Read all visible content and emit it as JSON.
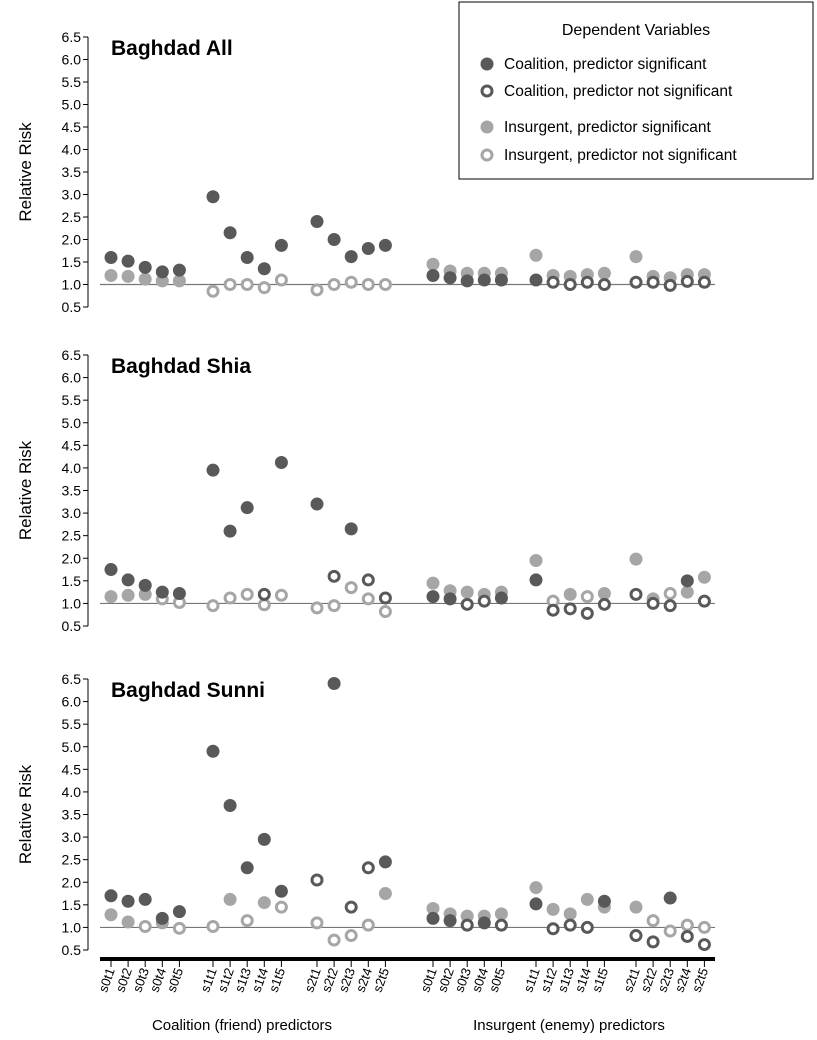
{
  "chart_data": {
    "type": "scatter",
    "ylabel": "Relative Risk",
    "ylim": [
      0.5,
      6.5
    ],
    "yticks": [
      "0.5",
      "1.0",
      "1.5",
      "2.0",
      "2.5",
      "3.0",
      "3.5",
      "4.0",
      "4.5",
      "5.0",
      "5.5",
      "6.0",
      "6.5"
    ],
    "reference_line": 1.0,
    "colors": {
      "coalition": "#595959",
      "insurgent": "#a6a6a6"
    },
    "categories": [
      "s0t1",
      "s0t2",
      "s0t3",
      "s0t4",
      "s0t5",
      "s1t1",
      "s1t2",
      "s1t3",
      "s1t4",
      "s1t5",
      "s2t1",
      "s2t2",
      "s2t3",
      "s2t4",
      "s2t5",
      "s0t1",
      "s0t2",
      "s0t3",
      "s0t4",
      "s0t5",
      "s1t1",
      "s1t2",
      "s1t3",
      "s1t4",
      "s1t5",
      "s2t1",
      "s2t2",
      "s2t3",
      "s2t4",
      "s2t5"
    ],
    "groups": [
      "Coalition (friend) predictors",
      "Insurgent (enemy) predictors"
    ],
    "legend": {
      "title": "Dependent Variables",
      "placement": "top-right",
      "entries": [
        {
          "label": "Coalition, predictor significant",
          "color": "#595959",
          "filled": true
        },
        {
          "label": "Coalition, predictor not significant",
          "color": "#595959",
          "filled": false
        },
        {
          "label": "Insurgent, predictor significant",
          "color": "#a6a6a6",
          "filled": true
        },
        {
          "label": "Insurgent, predictor not significant",
          "color": "#a6a6a6",
          "filled": false
        }
      ]
    },
    "panels": [
      {
        "title": "Baghdad All",
        "coalition_values": [
          1.6,
          1.52,
          1.38,
          1.28,
          1.32,
          2.95,
          2.15,
          1.6,
          1.35,
          1.87,
          2.4,
          2.0,
          1.62,
          1.8,
          1.87,
          1.2,
          1.15,
          1.08,
          1.1,
          1.1,
          1.1,
          1.05,
          1.0,
          1.05,
          1.0,
          1.05,
          1.05,
          0.98,
          1.07,
          1.05
        ],
        "coalition_significant": [
          true,
          true,
          true,
          true,
          true,
          true,
          true,
          true,
          true,
          true,
          true,
          true,
          true,
          true,
          true,
          true,
          true,
          true,
          true,
          true,
          true,
          false,
          false,
          false,
          false,
          false,
          false,
          false,
          false,
          false
        ],
        "insurgent_values": [
          1.2,
          1.18,
          1.12,
          1.08,
          1.08,
          0.85,
          1.0,
          1.0,
          0.93,
          1.1,
          0.88,
          1.0,
          1.05,
          1.0,
          1.0,
          1.45,
          1.3,
          1.25,
          1.25,
          1.25,
          1.65,
          1.2,
          1.18,
          1.22,
          1.25,
          1.62,
          1.18,
          1.15,
          1.22,
          1.22
        ],
        "insurgent_significant": [
          true,
          true,
          true,
          true,
          true,
          false,
          false,
          false,
          false,
          false,
          false,
          false,
          false,
          false,
          false,
          true,
          true,
          true,
          true,
          true,
          true,
          true,
          true,
          true,
          true,
          true,
          true,
          true,
          true,
          true
        ]
      },
      {
        "title": "Baghdad Shia",
        "coalition_values": [
          1.75,
          1.52,
          1.4,
          1.25,
          1.22,
          3.95,
          2.6,
          3.12,
          1.2,
          4.12,
          3.2,
          1.6,
          2.65,
          1.52,
          1.12,
          1.15,
          1.1,
          0.98,
          1.05,
          1.12,
          1.52,
          0.85,
          0.88,
          0.78,
          0.98,
          1.2,
          1.0,
          0.95,
          1.5,
          1.05
        ],
        "coalition_significant": [
          true,
          true,
          true,
          true,
          true,
          true,
          true,
          true,
          false,
          true,
          true,
          false,
          true,
          false,
          false,
          true,
          true,
          false,
          false,
          true,
          true,
          false,
          false,
          false,
          false,
          false,
          false,
          false,
          true,
          false
        ],
        "insurgent_values": [
          1.15,
          1.18,
          1.2,
          1.1,
          1.02,
          0.95,
          1.12,
          1.2,
          0.97,
          1.18,
          0.9,
          0.95,
          1.35,
          1.1,
          0.82,
          1.45,
          1.28,
          1.25,
          1.2,
          1.25,
          1.95,
          1.05,
          1.2,
          1.15,
          1.22,
          1.98,
          1.1,
          1.22,
          1.25,
          1.58
        ],
        "insurgent_significant": [
          true,
          true,
          true,
          false,
          false,
          false,
          false,
          false,
          false,
          false,
          false,
          false,
          false,
          false,
          false,
          true,
          true,
          true,
          true,
          true,
          true,
          false,
          true,
          false,
          true,
          true,
          true,
          false,
          true,
          true
        ]
      },
      {
        "title": "Baghdad Sunni",
        "coalition_values": [
          1.7,
          1.58,
          1.62,
          1.2,
          1.35,
          4.9,
          3.7,
          2.32,
          2.95,
          1.8,
          2.05,
          6.4,
          1.45,
          2.32,
          2.45,
          1.2,
          1.15,
          1.05,
          1.1,
          1.05,
          1.52,
          0.97,
          1.05,
          1.0,
          1.58,
          0.82,
          0.68,
          1.65,
          0.8,
          0.62
        ],
        "coalition_significant": [
          true,
          true,
          true,
          true,
          true,
          true,
          true,
          true,
          true,
          true,
          false,
          true,
          false,
          false,
          true,
          true,
          true,
          false,
          true,
          false,
          true,
          false,
          false,
          false,
          true,
          false,
          false,
          true,
          false,
          false
        ],
        "insurgent_values": [
          1.28,
          1.12,
          1.02,
          1.1,
          0.98,
          1.02,
          1.62,
          1.15,
          1.55,
          1.45,
          1.1,
          0.72,
          0.82,
          1.05,
          1.75,
          1.42,
          1.3,
          1.25,
          1.25,
          1.3,
          1.88,
          1.4,
          1.3,
          1.62,
          1.45,
          1.45,
          1.15,
          0.92,
          1.05,
          1.0
        ],
        "insurgent_significant": [
          true,
          true,
          false,
          true,
          false,
          false,
          true,
          false,
          true,
          false,
          false,
          false,
          false,
          false,
          true,
          true,
          true,
          true,
          true,
          true,
          true,
          true,
          true,
          true,
          true,
          true,
          false,
          false,
          false,
          false
        ]
      }
    ]
  }
}
